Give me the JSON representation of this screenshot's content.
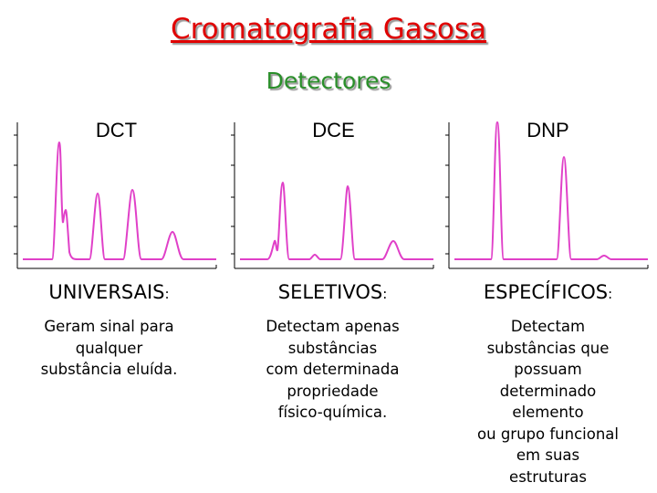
{
  "title": "Cromatografia Gasosa",
  "subtitle": "Detectores",
  "detectors": [
    {
      "label": "DCT",
      "category": "UNIVERSAIS",
      "colon": ":",
      "description": [
        "Geram sinal para",
        "qualquer",
        "substância eluída."
      ]
    },
    {
      "label": "DCE",
      "category": "SELETIVOS",
      "colon": ":",
      "description": [
        "Detectam apenas",
        "substâncias",
        "com determinada",
        "propriedade",
        "físico-química."
      ]
    },
    {
      "label": "DNP",
      "category": "ESPECÍFICOS",
      "colon": ":",
      "description": [
        "Detectam",
        "substâncias que",
        "possuam",
        "determinado",
        "elemento",
        "ou grupo funcional",
        "em suas",
        "estruturas"
      ]
    }
  ],
  "colors": {
    "title": "#e00000",
    "subtitle": "#2a8f2a",
    "trace": "#e040c8"
  }
}
